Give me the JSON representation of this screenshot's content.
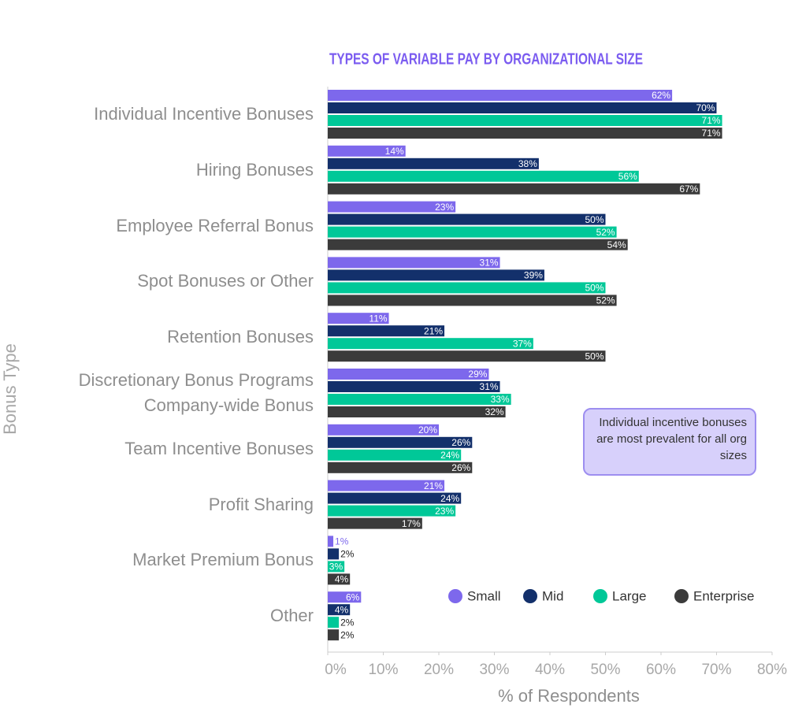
{
  "chart_data": {
    "type": "bar",
    "orientation": "horizontal",
    "title": "TYPES OF VARIABLE PAY BY ORGANIZATIONAL SIZE",
    "xlabel": "% of Respondents",
    "ylabel": "Bonus Type",
    "categories": [
      "Individual Incentive Bonuses",
      "Hiring Bonuses",
      "Employee Referral Bonus",
      "Spot Bonuses or Other",
      "Retention Bonuses",
      "Discretionary Bonus Programs\nCompany-wide Bonus",
      "Team Incentive Bonuses",
      "Profit Sharing",
      "Market Premium Bonus",
      "Other"
    ],
    "series": [
      {
        "name": "Small",
        "color": "#7d68ec",
        "values": [
          62,
          14,
          23,
          31,
          11,
          29,
          20,
          21,
          1,
          6
        ],
        "value_labels": [
          "62%",
          "14%",
          "23%",
          "31%",
          "11%",
          "29%",
          "20%",
          "21%",
          "1%",
          "6%"
        ]
      },
      {
        "name": "Mid",
        "color": "#13306b",
        "values": [
          70,
          38,
          50,
          39,
          21,
          31,
          26,
          24,
          2,
          4
        ],
        "value_labels": [
          "70%",
          "38%",
          "50%",
          "39%",
          "21%",
          "31%",
          "26%",
          "24%",
          "2%",
          "4%"
        ]
      },
      {
        "name": "Large",
        "color": "#00c898",
        "values": [
          71,
          56,
          52,
          50,
          37,
          33,
          24,
          23,
          3,
          2
        ],
        "value_labels": [
          "71%",
          "56%",
          "52%",
          "50%",
          "37%",
          "33%",
          "24%",
          "23%",
          "3%",
          "2%"
        ]
      },
      {
        "name": "Enterprise",
        "color": "#3b3b3b",
        "values": [
          71,
          67,
          54,
          52,
          50,
          32,
          26,
          17,
          4,
          2
        ],
        "value_labels": [
          "71%",
          "67%",
          "54%",
          "52%",
          "50%",
          "32%",
          "26%",
          "17%",
          "4%",
          "2%"
        ]
      }
    ],
    "xlim": [
      0,
      80
    ],
    "xticks": [
      {
        "value": 0,
        "label": "0%"
      },
      {
        "value": 10,
        "label": "10%"
      },
      {
        "value": 20,
        "label": "20%"
      },
      {
        "value": 30,
        "label": "30%"
      },
      {
        "value": 40,
        "label": "40%"
      },
      {
        "value": 50,
        "label": "50%"
      },
      {
        "value": 60,
        "label": "60%"
      },
      {
        "value": 70,
        "label": "70%"
      },
      {
        "value": 80,
        "label": "80%"
      }
    ],
    "annotation": "Individual incentive bonuses are most prevalent for all org sizes",
    "legend": "lower right",
    "grid": false
  }
}
